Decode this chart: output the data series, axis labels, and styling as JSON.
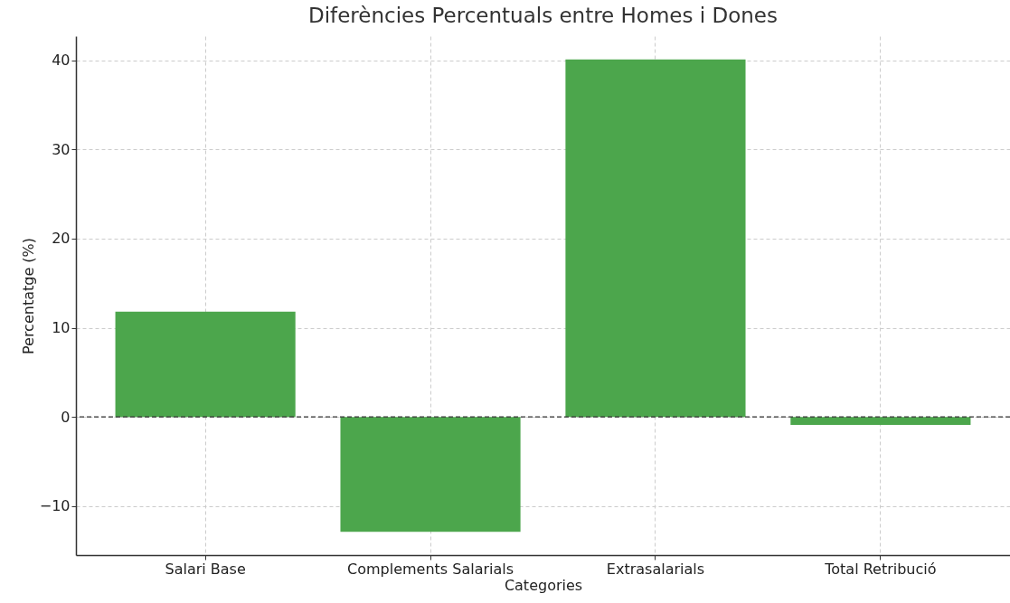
{
  "chart_data": {
    "type": "bar",
    "title": "Diferències Percentuals entre Homes i Dones",
    "xlabel": "Categories",
    "ylabel": "Percentatge (%)",
    "categories": [
      "Salari Base",
      "Complements Salarials",
      "Extrasalarials",
      "Total Retribució"
    ],
    "values": [
      11.8,
      -12.9,
      40.1,
      -0.9
    ],
    "color": "#4ca64c",
    "ylim": [
      -15.5,
      42.7
    ],
    "yticks": [
      -10,
      0,
      10,
      20,
      30,
      40
    ],
    "grid": true,
    "ref_lines": [
      {
        "axis": "y",
        "value": 0,
        "color": "#333333",
        "line_style": "dashed"
      }
    ]
  }
}
